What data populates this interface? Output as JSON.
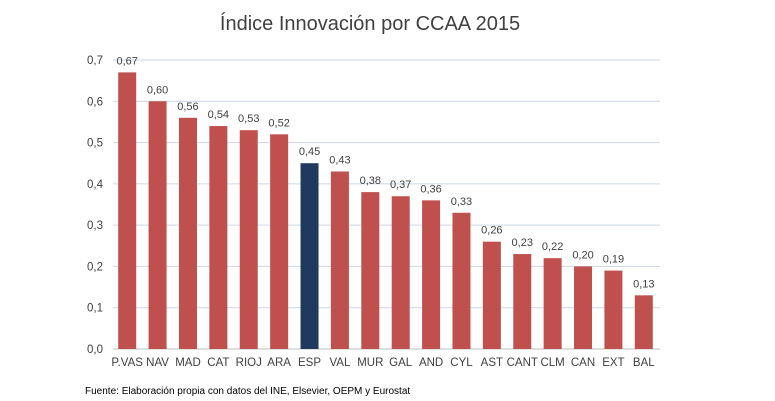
{
  "chart_data": {
    "type": "bar",
    "title": "Índice Innovación por CCAA 2015",
    "categories": [
      "P.VAS",
      "NAV",
      "MAD",
      "CAT",
      "RIOJ",
      "ARA",
      "ESP",
      "VAL",
      "MUR",
      "GAL",
      "AND",
      "CYL",
      "AST",
      "CANT",
      "CLM",
      "CAN",
      "EXT",
      "BAL"
    ],
    "values": [
      0.67,
      0.6,
      0.56,
      0.54,
      0.53,
      0.52,
      0.45,
      0.43,
      0.38,
      0.37,
      0.36,
      0.33,
      0.26,
      0.23,
      0.22,
      0.2,
      0.19,
      0.13
    ],
    "data_labels": [
      "0,67",
      "0,60",
      "0,56",
      "0,54",
      "0,53",
      "0,52",
      "0,45",
      "0,43",
      "0,38",
      "0,37",
      "0,36",
      "0,33",
      "0,26",
      "0,23",
      "0,22",
      "0,20",
      "0,19",
      "0,13"
    ],
    "highlight": "ESP",
    "yticks": [
      "0,0",
      "0,1",
      "0,2",
      "0,3",
      "0,4",
      "0,5",
      "0,6",
      "0,7"
    ],
    "ylim": [
      0,
      0.7
    ],
    "grid": true,
    "xlabel": "",
    "ylabel": "",
    "colors": {
      "default": "#c0504d",
      "highlight": "#1f3a5c",
      "grid": "#c9d6e3"
    }
  },
  "source": "Fuente: Elaboración propia con datos del INE, Elsevier, OEPM y Eurostat"
}
